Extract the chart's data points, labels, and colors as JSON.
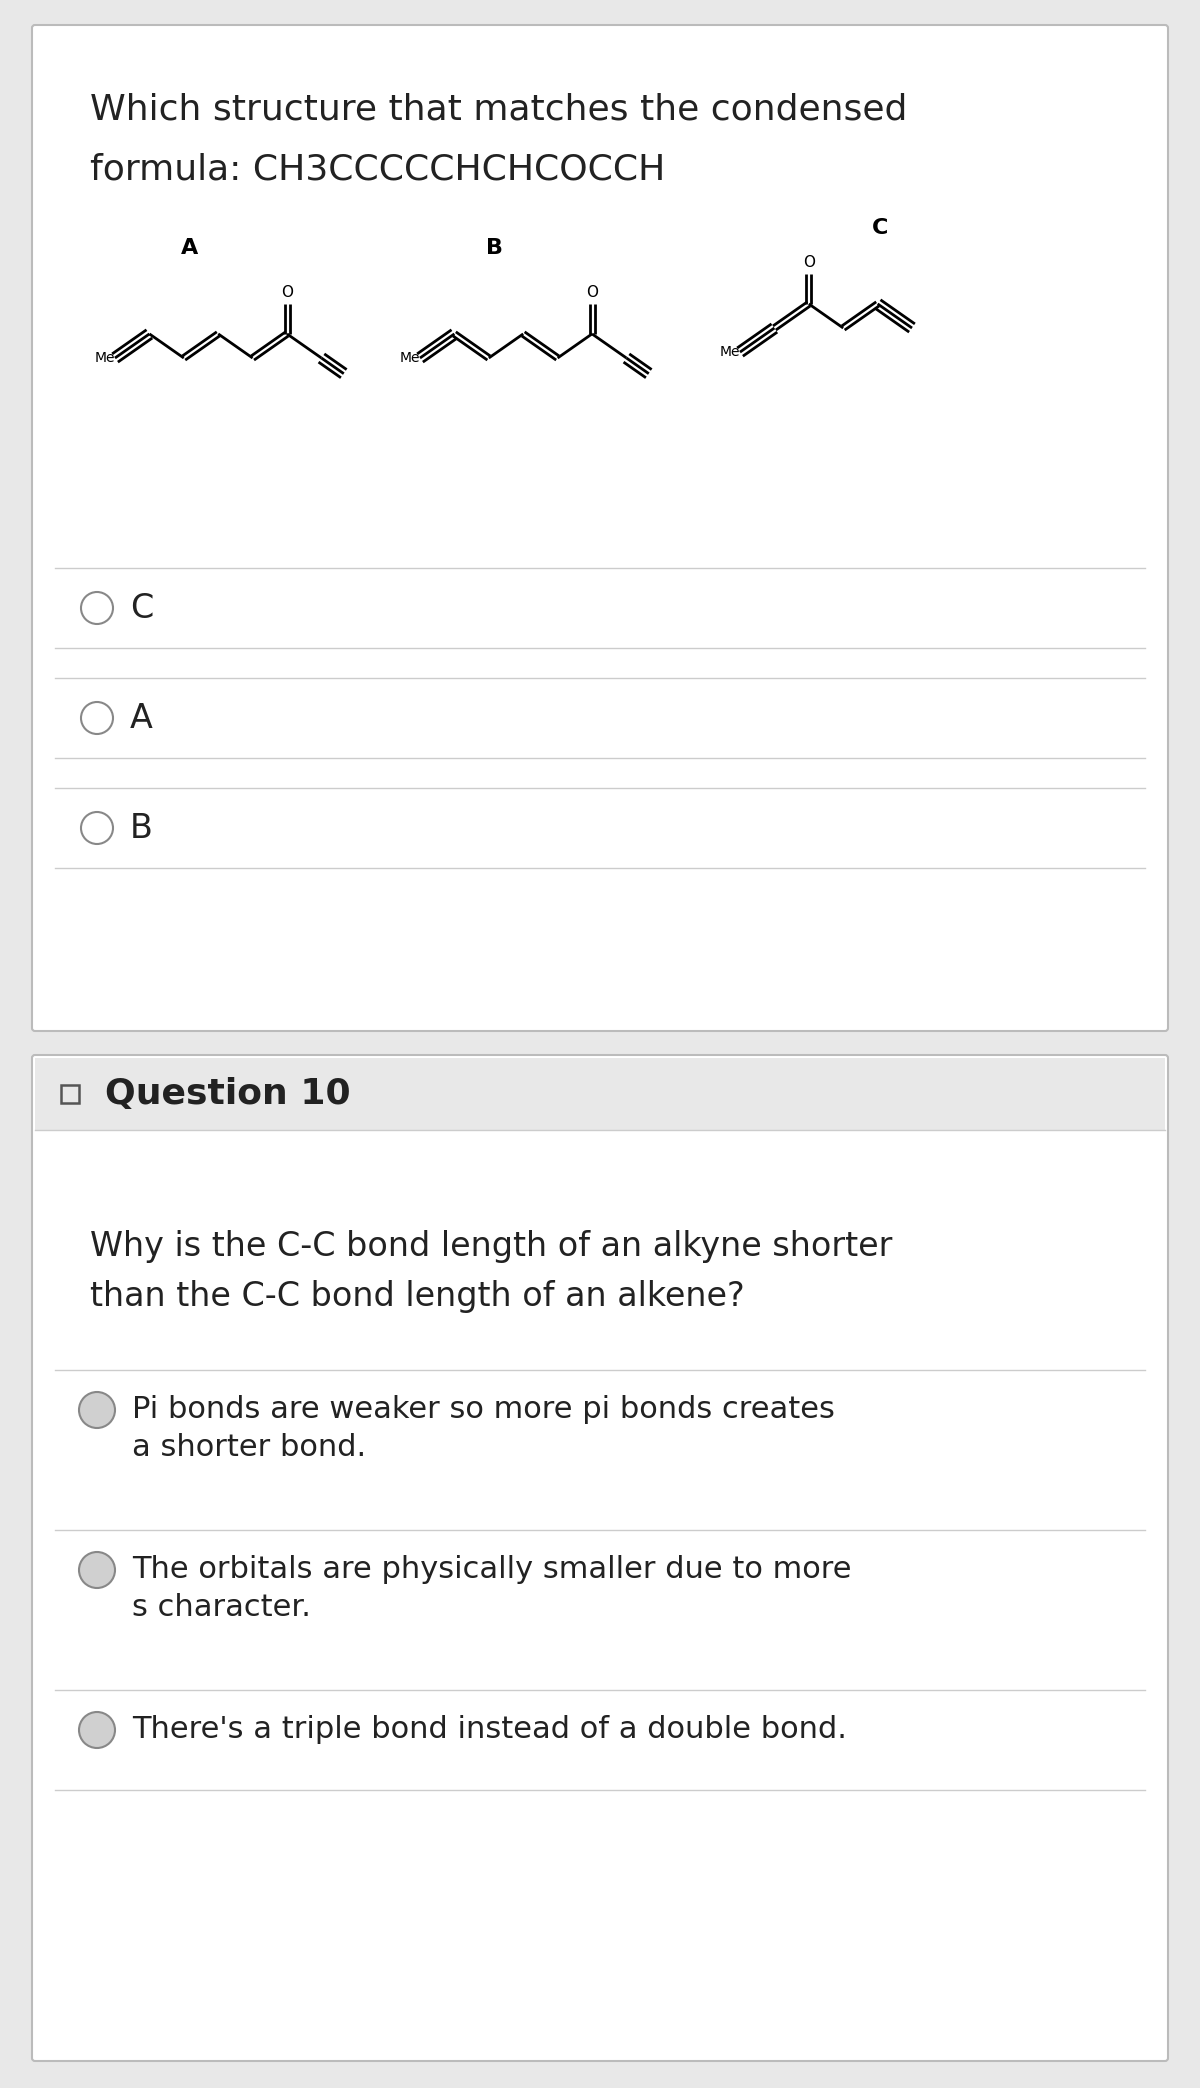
{
  "bg_color": "#e8e8e8",
  "card_bg": "#ffffff",
  "border_color": "#cccccc",
  "q9_line1": "Which structure that matches the condensed",
  "q9_line2": "formula: CH3CCCCCHСHCOCCH",
  "q9_options": [
    "C",
    "A",
    "B"
  ],
  "q10_title": "Question 10",
  "q10_q_line1": "Why is the C-C bond length of an alkyne shorter",
  "q10_q_line2": "than the C-C bond length of an alkene?",
  "q10_options": [
    [
      "Pi bonds are weaker so more pi bonds creates",
      "a shorter bond."
    ],
    [
      "The orbitals are physically smaller due to more",
      "s character."
    ],
    [
      "There's a triple bond instead of a double bond."
    ]
  ],
  "text_color": "#222222",
  "circle_color": "#888888",
  "circle_fill": "#d0d0d0",
  "line_color": "#cccccc",
  "header_bg": "#e8e8e8",
  "struct_labels": [
    "A",
    "B",
    "C"
  ]
}
